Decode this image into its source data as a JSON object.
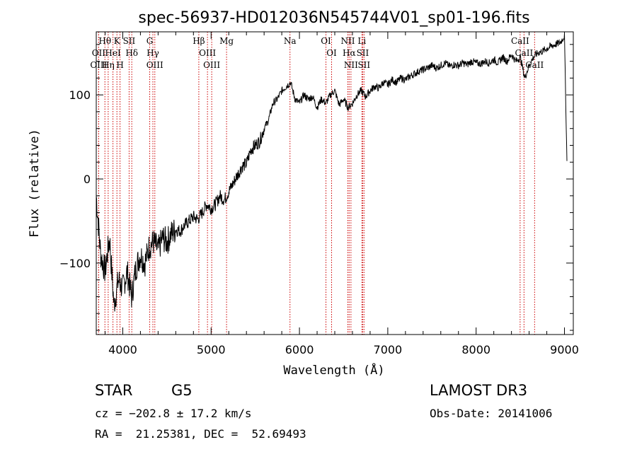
{
  "chart_data": {
    "type": "line",
    "title": "spec-56937-HD012036N545744V01_sp01-196.fits",
    "xlabel": "Wavelength (Å)",
    "ylabel": "Flux (relative)",
    "xlim": [
      3700,
      9100
    ],
    "ylim": [
      -185,
      175
    ],
    "xticks": [
      4000,
      5000,
      6000,
      7000,
      8000,
      9000
    ],
    "yticks": [
      -100,
      0,
      100
    ],
    "series": [
      {
        "name": "flux",
        "color": "#000000",
        "x": [
          3700,
          3750,
          3800,
          3850,
          3900,
          3950,
          4000,
          4050,
          4100,
          4150,
          4200,
          4250,
          4300,
          4350,
          4400,
          4450,
          4500,
          4550,
          4600,
          4650,
          4700,
          4750,
          4800,
          4850,
          4900,
          4950,
          5000,
          5050,
          5100,
          5150,
          5200,
          5250,
          5300,
          5350,
          5400,
          5450,
          5500,
          5550,
          5600,
          5650,
          5700,
          5750,
          5800,
          5850,
          5900,
          5950,
          6000,
          6050,
          6100,
          6150,
          6200,
          6250,
          6300,
          6350,
          6400,
          6450,
          6500,
          6550,
          6600,
          6650,
          6700,
          6750,
          6800,
          6850,
          6900,
          6950,
          7000,
          7050,
          7100,
          7150,
          7200,
          7250,
          7300,
          7350,
          7400,
          7450,
          7500,
          7550,
          7600,
          7650,
          7700,
          7750,
          7800,
          7850,
          7900,
          7950,
          8000,
          8050,
          8100,
          8150,
          8200,
          8250,
          8300,
          8350,
          8400,
          8450,
          8500,
          8550,
          8600,
          8650,
          8700,
          8750,
          8800,
          8850,
          8900,
          8950,
          9000,
          9030
        ],
        "y": [
          -20,
          -90,
          -110,
          -70,
          -150,
          -120,
          -130,
          -110,
          -140,
          -105,
          -90,
          -100,
          -80,
          -75,
          -85,
          -70,
          -75,
          -65,
          -60,
          -62,
          -55,
          -50,
          -45,
          -48,
          -40,
          -30,
          -35,
          -30,
          -20,
          -25,
          -15,
          -5,
          5,
          15,
          18,
          35,
          40,
          45,
          60,
          70,
          90,
          95,
          105,
          110,
          115,
          95,
          90,
          100,
          95,
          98,
          85,
          95,
          90,
          100,
          105,
          88,
          95,
          85,
          90,
          100,
          105,
          98,
          105,
          110,
          108,
          115,
          112,
          118,
          115,
          120,
          118,
          122,
          125,
          128,
          130,
          132,
          135,
          132,
          135,
          138,
          134,
          136,
          135,
          138,
          136,
          140,
          138,
          137,
          140,
          138,
          142,
          138,
          145,
          140,
          148,
          140,
          145,
          120,
          135,
          145,
          150,
          152,
          155,
          158,
          160,
          162,
          170,
          10
        ]
      }
    ],
    "spectral_lines": [
      {
        "label": "Hθ",
        "wavelength": 3798
      },
      {
        "label": "OII",
        "wavelength": 3727
      },
      {
        "label": "OIII",
        "wavelength": 3727
      },
      {
        "label": "Hη",
        "wavelength": 3835
      },
      {
        "label": "HeI",
        "wavelength": 3889
      },
      {
        "label": "K",
        "wavelength": 3934
      },
      {
        "label": "H",
        "wavelength": 3969
      },
      {
        "label": "SII",
        "wavelength": 4072
      },
      {
        "label": "Hδ",
        "wavelength": 4102
      },
      {
        "label": "G",
        "wavelength": 4305
      },
      {
        "label": "Hγ",
        "wavelength": 4341
      },
      {
        "label": "OIII",
        "wavelength": 4363
      },
      {
        "label": "Hβ",
        "wavelength": 4861
      },
      {
        "label": "OIII",
        "wavelength": 4959
      },
      {
        "label": "OIII",
        "wavelength": 5007
      },
      {
        "label": "Mg",
        "wavelength": 5175
      },
      {
        "label": "Na",
        "wavelength": 5893
      },
      {
        "label": "OI",
        "wavelength": 6300
      },
      {
        "label": "OI",
        "wavelength": 6364
      },
      {
        "label": "NII",
        "wavelength": 6548
      },
      {
        "label": "Hα",
        "wavelength": 6563
      },
      {
        "label": "NII",
        "wavelength": 6583
      },
      {
        "label": "Li",
        "wavelength": 6707
      },
      {
        "label": "SII",
        "wavelength": 6716
      },
      {
        "label": "SII",
        "wavelength": 6731
      },
      {
        "label": "CaII",
        "wavelength": 8498
      },
      {
        "label": "CaII",
        "wavelength": 8542
      },
      {
        "label": "CaII",
        "wavelength": 8662
      }
    ]
  },
  "info": {
    "object_class": "STAR",
    "subclass": "G5",
    "survey": "LAMOST DR3",
    "cz": "cz = −202.8 ± 17.2 km/s",
    "obs_date": "Obs-Date: 20141006",
    "coords": "RA =  21.25381, DEC =  52.69493"
  },
  "colors": {
    "line": "#000000",
    "marker_line": "#cc0000"
  }
}
